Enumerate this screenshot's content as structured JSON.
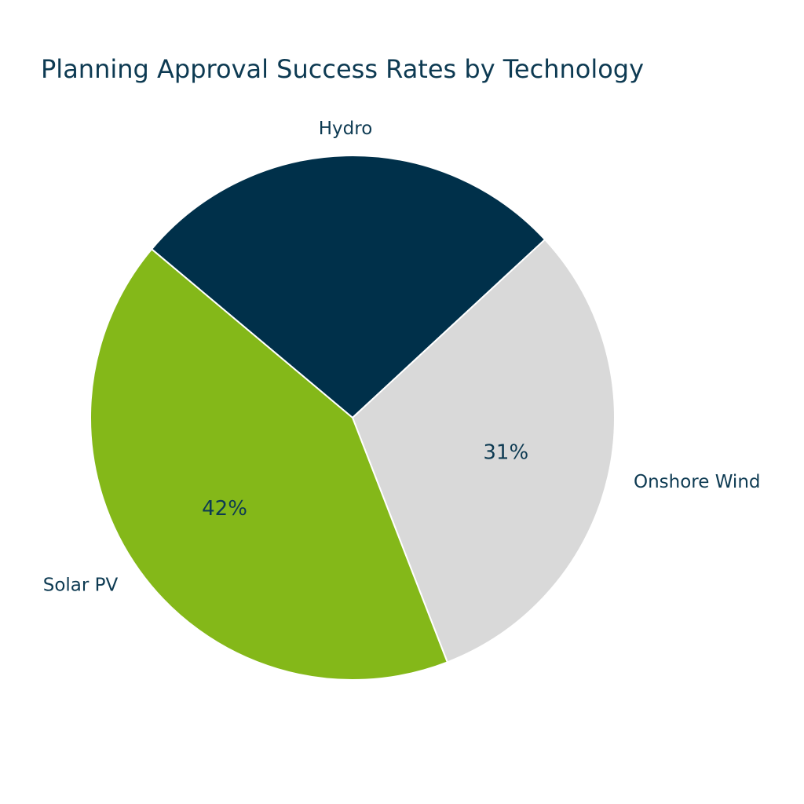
{
  "chart_data": {
    "type": "pie",
    "title": "Planning Approval Success Rates by Technology",
    "slices": [
      {
        "label": "Hydro",
        "value": 27,
        "percent_label": "",
        "color": "#00304a"
      },
      {
        "label": "Onshore Wind",
        "value": 31,
        "percent_label": "31%",
        "color": "#d9d9d9"
      },
      {
        "label": "Solar PV",
        "value": 42,
        "percent_label": "42%",
        "color": "#84b819"
      }
    ],
    "slice_border_color": "#ffffff",
    "text_color": "#0d3a52",
    "legend": "none"
  }
}
